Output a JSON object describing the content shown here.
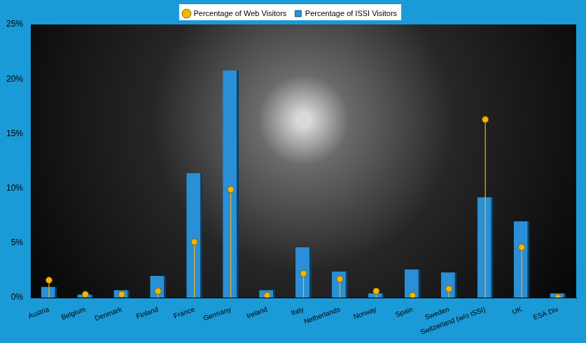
{
  "chart_data": {
    "type": "bar",
    "categories": [
      "Austria",
      "Belgium",
      "Denmark",
      "Finland",
      "France",
      "Germany",
      "Ireland",
      "Italy",
      "Netherlands",
      "Norway",
      "Spain",
      "Sweden",
      "Switzerland (w/o ISSI)",
      "UK",
      "ESA Div"
    ],
    "series": [
      {
        "name": "Percentage of ISSI Visitors",
        "type": "bar",
        "color": "#2a8fd6",
        "values": [
          1.0,
          0.3,
          0.7,
          2.0,
          11.4,
          20.8,
          0.7,
          4.6,
          2.4,
          0.4,
          2.6,
          2.3,
          9.2,
          7.0,
          0.4
        ]
      },
      {
        "name": "Percentage of Web Visitors",
        "type": "scatter",
        "color": "#f2b705",
        "marker": "circle",
        "values": [
          1.6,
          0.3,
          0.3,
          0.6,
          5.1,
          9.9,
          0.2,
          2.2,
          1.7,
          0.6,
          0.2,
          0.8,
          16.3,
          4.6,
          0.0
        ]
      }
    ],
    "ylim": [
      0,
      25
    ],
    "yticks": [
      {
        "value": 0,
        "label": "0%"
      },
      {
        "value": 5,
        "label": "5%"
      },
      {
        "value": 10,
        "label": "10%"
      },
      {
        "value": 15,
        "label": "15%"
      },
      {
        "value": 20,
        "label": "20%"
      },
      {
        "value": 25,
        "label": "25%"
      }
    ],
    "grid": false,
    "legend": "top"
  }
}
